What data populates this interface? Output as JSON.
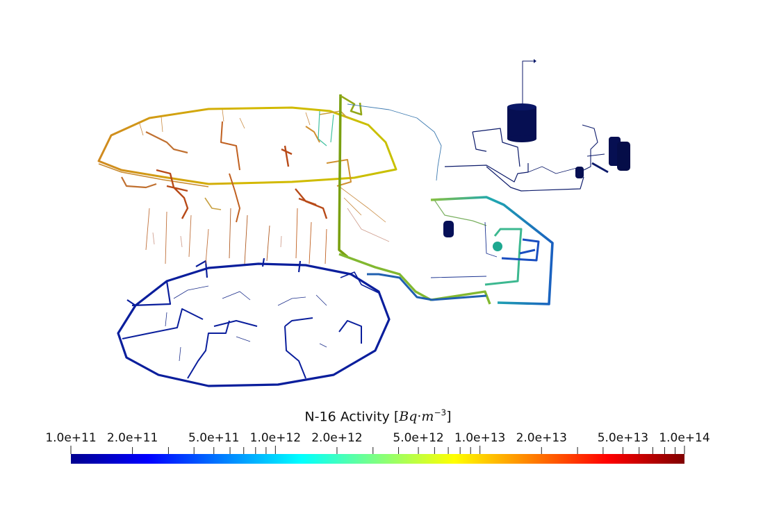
{
  "colorbar": {
    "quantity": "N-16 Activity",
    "unit_open": "[",
    "unit_bq": "Bq",
    "unit_dot": "·",
    "unit_m": "m",
    "unit_exp": "−3",
    "unit_close": "]",
    "scale": "log",
    "range": [
      100000000000.0,
      100000000000000.0
    ],
    "labeled_ticks": [
      "1.0e+11",
      "2.0e+11",
      "5.0e+11",
      "1.0e+12",
      "2.0e+12",
      "5.0e+12",
      "1.0e+13",
      "2.0e+13",
      "5.0e+13",
      "1.0e+14"
    ],
    "labeled_tick_values": [
      100000000000.0,
      200000000000.0,
      500000000000.0,
      1000000000000.0,
      2000000000000.0,
      5000000000000.0,
      10000000000000.0,
      20000000000000.0,
      50000000000000.0,
      100000000000000.0
    ],
    "colormap": "jet",
    "colormap_stops": [
      "#00008f",
      "#0000ff",
      "#0080ff",
      "#00ffff",
      "#80ff80",
      "#ffff00",
      "#ff8000",
      "#ff0000",
      "#800000"
    ]
  },
  "model": {
    "upper_ring_color": "#c9b400",
    "lower_ring_color": "#0a1e9c",
    "riser_color": "#7a9a10",
    "return_loop_color": "#1e8fb0",
    "tank_color": "#06104f"
  }
}
